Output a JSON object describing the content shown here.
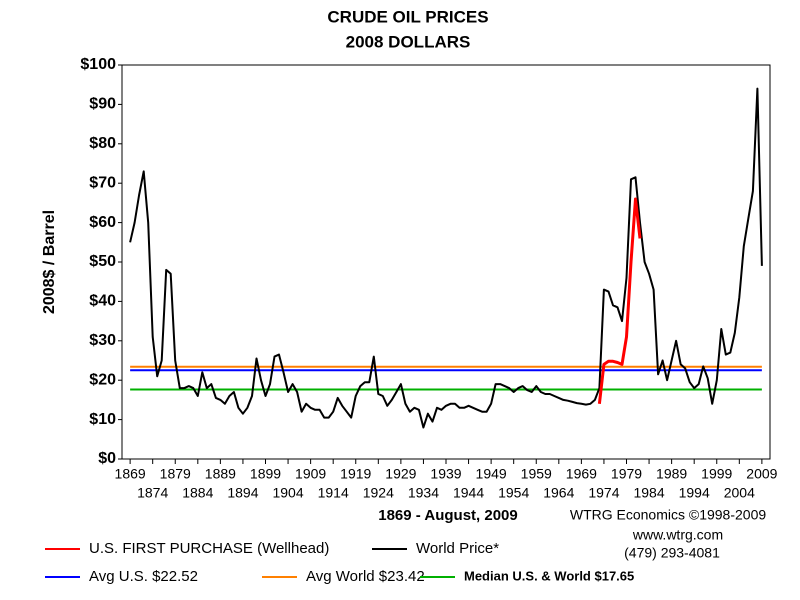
{
  "chart_data": {
    "type": "line",
    "title": "CRUDE OIL PRICES",
    "subtitle": "2008 DOLLARS",
    "y_label": "2008$ / Barrel",
    "x_label": "1869 - August, 2009",
    "credits": [
      "WTRG Economics  ©1998-2009",
      "www.wtrg.com",
      "(479) 293-4081"
    ],
    "xlim": [
      1867.2,
      2010.8
    ],
    "ylim": [
      0,
      100
    ],
    "xticks": [
      1869,
      1874,
      1879,
      1884,
      1889,
      1894,
      1899,
      1904,
      1909,
      1914,
      1919,
      1924,
      1929,
      1934,
      1939,
      1944,
      1949,
      1954,
      1959,
      1964,
      1969,
      1974,
      1979,
      1984,
      1989,
      1994,
      1999,
      2004,
      2009
    ],
    "yticks": [
      {
        "value": 0,
        "label": "$0"
      },
      {
        "value": 10,
        "label": "$10"
      },
      {
        "value": 20,
        "label": "$20"
      },
      {
        "value": 30,
        "label": "$30"
      },
      {
        "value": 40,
        "label": "$40"
      },
      {
        "value": 50,
        "label": "$50"
      },
      {
        "value": 60,
        "label": "$60"
      },
      {
        "value": 70,
        "label": "$70"
      },
      {
        "value": 80,
        "label": "$80"
      },
      {
        "value": 90,
        "label": "$90"
      },
      {
        "value": 100,
        "label": "$100"
      }
    ],
    "series": [
      {
        "name": "U.S. FIRST PURCHASE (Wellhead)",
        "color": "#ff0000",
        "x": [
          1973,
          1974,
          1975,
          1976,
          1977,
          1978,
          1979,
          1980,
          1981,
          1982
        ],
        "values": [
          14,
          24,
          24.8,
          24.8,
          24.5,
          24,
          31,
          50,
          66,
          56
        ]
      },
      {
        "name": "World Price*",
        "color": "#000000",
        "x": [
          1869,
          1870,
          1871,
          1872,
          1873,
          1874,
          1875,
          1876,
          1877,
          1878,
          1879,
          1880,
          1881,
          1882,
          1883,
          1884,
          1885,
          1886,
          1887,
          1888,
          1889,
          1890,
          1891,
          1892,
          1893,
          1894,
          1895,
          1896,
          1897,
          1898,
          1899,
          1900,
          1901,
          1902,
          1903,
          1904,
          1905,
          1906,
          1907,
          1908,
          1909,
          1910,
          1911,
          1912,
          1913,
          1914,
          1915,
          1916,
          1917,
          1918,
          1919,
          1920,
          1921,
          1922,
          1923,
          1924,
          1925,
          1926,
          1927,
          1928,
          1929,
          1930,
          1931,
          1932,
          1933,
          1934,
          1935,
          1936,
          1937,
          1938,
          1939,
          1940,
          1941,
          1942,
          1943,
          1944,
          1945,
          1946,
          1947,
          1948,
          1949,
          1950,
          1951,
          1952,
          1953,
          1954,
          1955,
          1956,
          1957,
          1958,
          1959,
          1960,
          1961,
          1962,
          1963,
          1964,
          1965,
          1966,
          1967,
          1968,
          1969,
          1970,
          1971,
          1972,
          1973,
          1974,
          1975,
          1976,
          1977,
          1978,
          1979,
          1980,
          1981,
          1982,
          1983,
          1984,
          1985,
          1986,
          1987,
          1988,
          1989,
          1990,
          1991,
          1992,
          1993,
          1994,
          1995,
          1996,
          1997,
          1998,
          1999,
          2000,
          2001,
          2002,
          2003,
          2004,
          2005,
          2006,
          2007,
          2008,
          2009
        ],
        "values": [
          55,
          60,
          67,
          73,
          60,
          31,
          21,
          25,
          48,
          47,
          25,
          18,
          18,
          18.5,
          18,
          16,
          22,
          18,
          19,
          15.5,
          15,
          14,
          16,
          17,
          13,
          11.5,
          13,
          16,
          25.5,
          20,
          16,
          19,
          26,
          26.5,
          22,
          17,
          19,
          17,
          12,
          14,
          13,
          12.5,
          12.5,
          10.5,
          10.5,
          12,
          15.5,
          13.5,
          12,
          10.5,
          16,
          18.5,
          19.5,
          19.5,
          26,
          16.5,
          16,
          13.5,
          15,
          17,
          19,
          14,
          12,
          13,
          12.5,
          8,
          11.5,
          9.5,
          13,
          12.5,
          13.5,
          14,
          14,
          13,
          13,
          13.5,
          13,
          12.5,
          12,
          12,
          14,
          19,
          19,
          18.5,
          18,
          17,
          18,
          18.5,
          17.5,
          17,
          18.5,
          17,
          16.5,
          16.5,
          16,
          15.5,
          15,
          14.8,
          14.5,
          14.2,
          14,
          13.8,
          14,
          15,
          18,
          43,
          42.5,
          39,
          38.5,
          35,
          46,
          71,
          71.5,
          60,
          50,
          47,
          43,
          21.5,
          25,
          20,
          25,
          30,
          24,
          23,
          19.5,
          18,
          19,
          23.5,
          20.5,
          14,
          20,
          33,
          26.5,
          27,
          32,
          41,
          54,
          61,
          68,
          94,
          49
        ]
      }
    ],
    "reference_lines": [
      {
        "label": "Avg U.S. $22.52",
        "value": 22.52,
        "color": "#0000ff"
      },
      {
        "label": "Avg World $23.42",
        "value": 23.42,
        "color": "#ff8000"
      },
      {
        "label": "Median U.S. & World  $17.65",
        "value": 17.65,
        "color": "#00b000"
      }
    ]
  }
}
